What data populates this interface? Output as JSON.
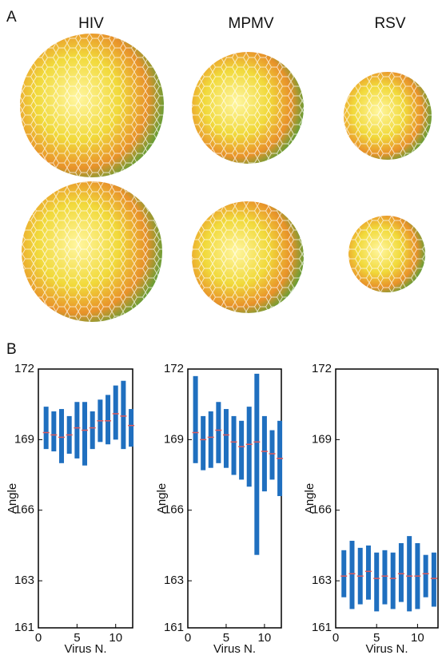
{
  "panel_a": {
    "label": "A",
    "viruses": [
      "HIV",
      "MPMV",
      "RSV"
    ]
  },
  "panel_b": {
    "label": "B"
  },
  "chart_data": [
    {
      "type": "range",
      "xlabel": "Virus N.",
      "ylabel": "Angle",
      "color": "#1f6fbf",
      "median_color": "#e05a5a",
      "x": [
        1,
        2,
        3,
        4,
        5,
        6,
        7,
        8,
        9,
        10,
        11,
        12
      ],
      "low": [
        168.6,
        168.5,
        168.0,
        168.4,
        168.2,
        167.9,
        168.6,
        168.9,
        168.8,
        169.0,
        168.6,
        168.7
      ],
      "high": [
        170.4,
        170.2,
        170.3,
        170.0,
        170.6,
        170.6,
        170.2,
        170.7,
        170.9,
        171.3,
        171.5,
        170.3
      ],
      "median": [
        169.3,
        169.2,
        169.1,
        169.2,
        169.5,
        169.4,
        169.5,
        169.8,
        169.8,
        170.1,
        170.0,
        169.6
      ],
      "xlim": [
        0,
        12.2
      ],
      "ylim": [
        161,
        172
      ],
      "xticks": [
        0,
        5,
        10
      ],
      "yticks": [
        161,
        163,
        166,
        169,
        172
      ]
    },
    {
      "type": "range",
      "xlabel": "Virus N.",
      "ylabel": "Angle",
      "color": "#1f6fbf",
      "median_color": "#e05a5a",
      "x": [
        1,
        2,
        3,
        4,
        5,
        6,
        7,
        8,
        9,
        10,
        11,
        12
      ],
      "low": [
        168.0,
        167.7,
        167.8,
        168.0,
        167.8,
        167.5,
        167.3,
        167.0,
        164.1,
        166.8,
        167.3,
        166.6
      ],
      "high": [
        171.7,
        170.0,
        170.2,
        170.6,
        170.3,
        170.0,
        169.8,
        170.4,
        171.8,
        170.0,
        169.4,
        169.8
      ],
      "median": [
        169.3,
        169.0,
        169.1,
        169.4,
        169.2,
        168.9,
        168.7,
        168.8,
        168.9,
        168.5,
        168.4,
        168.2
      ],
      "xlim": [
        0,
        12.2
      ],
      "ylim": [
        161,
        172
      ],
      "xticks": [
        0,
        5,
        10
      ],
      "yticks": [
        161,
        163,
        166,
        169,
        172
      ]
    },
    {
      "type": "range",
      "xlabel": "Virus N.",
      "ylabel": "Angle",
      "color": "#1f6fbf",
      "median_color": "#e05a5a",
      "x": [
        1,
        2,
        3,
        4,
        5,
        6,
        7,
        8,
        9,
        10,
        11,
        12
      ],
      "low": [
        162.3,
        161.8,
        162.0,
        162.2,
        161.7,
        162.0,
        161.8,
        162.1,
        161.7,
        161.8,
        162.3,
        161.9
      ],
      "high": [
        164.3,
        164.7,
        164.4,
        164.5,
        164.2,
        164.3,
        164.2,
        164.6,
        164.9,
        164.6,
        164.1,
        164.2
      ],
      "median": [
        163.2,
        163.3,
        163.2,
        163.4,
        163.1,
        163.2,
        163.1,
        163.3,
        163.2,
        163.2,
        163.3,
        163.1
      ],
      "xlim": [
        0,
        12.5
      ],
      "ylim": [
        161,
        172
      ],
      "xticks": [
        0,
        5,
        10
      ],
      "yticks": [
        161,
        163,
        166,
        169,
        172
      ]
    }
  ]
}
